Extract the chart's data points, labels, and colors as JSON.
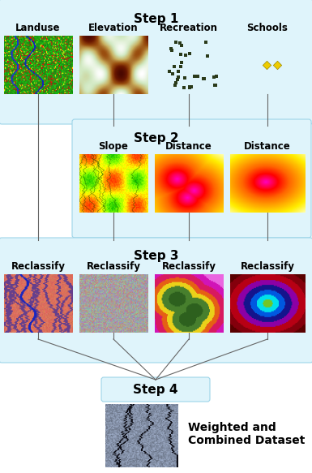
{
  "title": "Step 1",
  "step1_labels": [
    "Landuse",
    "Elevation",
    "Recreation",
    "Schools"
  ],
  "step2_title": "Step 2",
  "step2_labels": [
    "Slope",
    "Distance",
    "Distance"
  ],
  "step3_title": "Step 3",
  "step3_labels": [
    "Reclassify",
    "Reclassify",
    "Reclassify",
    "Reclassify"
  ],
  "step4_title": "Step 4",
  "step4_label": "Weighted and\nCombined Dataset",
  "bg_color": "#e8f8fc",
  "step_title_fontsize": 11,
  "label_fontsize": 8.5,
  "step4_label_fontsize": 10,
  "fig_w": 3.85,
  "fig_h": 5.83,
  "dpi": 100
}
